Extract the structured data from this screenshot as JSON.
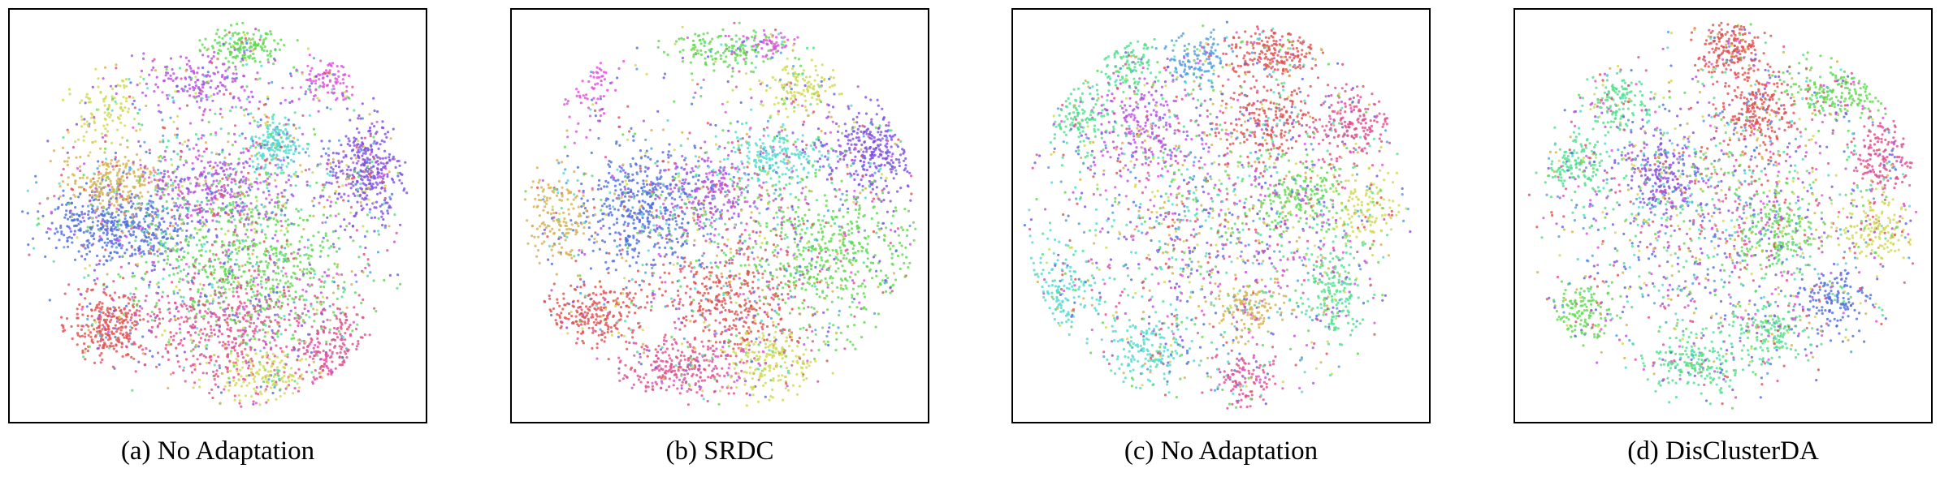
{
  "figure": {
    "panels": [
      {
        "caption": "(a) No Adaptation"
      },
      {
        "caption": "(b) SRDC"
      },
      {
        "caption": "(c) No Adaptation"
      },
      {
        "caption": "(d) DisClusterDA"
      }
    ]
  },
  "chart_data": [
    {
      "type": "scatter",
      "caption": "(a) No Adaptation",
      "axes_visible": false,
      "grid": false,
      "xlim": [
        0,
        1
      ],
      "ylim": [
        0,
        1
      ],
      "palette": [
        "#4f6fdd",
        "#e0504f",
        "#5fd94f",
        "#b84fe0",
        "#e04f8f",
        "#4fdcd0",
        "#cfd94f",
        "#7f4fe0",
        "#d6b04f",
        "#e04fdc",
        "#4fe08f",
        "#4f9fe0"
      ],
      "clusters": [
        {
          "cx": 0.25,
          "cy": 0.53,
          "sx": 0.1,
          "sy": 0.045,
          "color": 0,
          "n": 520
        },
        {
          "cx": 0.23,
          "cy": 0.41,
          "sx": 0.07,
          "sy": 0.04,
          "color": 8,
          "n": 260
        },
        {
          "cx": 0.22,
          "cy": 0.23,
          "sx": 0.05,
          "sy": 0.05,
          "color": 6,
          "n": 120
        },
        {
          "cx": 0.22,
          "cy": 0.78,
          "sx": 0.05,
          "sy": 0.045,
          "color": 1,
          "n": 300
        },
        {
          "cx": 0.57,
          "cy": 0.06,
          "sx": 0.05,
          "sy": 0.025,
          "color": 2,
          "n": 170
        },
        {
          "cx": 0.77,
          "cy": 0.15,
          "sx": 0.04,
          "sy": 0.03,
          "color": 9,
          "n": 110
        },
        {
          "cx": 0.46,
          "cy": 0.16,
          "sx": 0.08,
          "sy": 0.04,
          "color": 3,
          "n": 200
        },
        {
          "cx": 0.64,
          "cy": 0.32,
          "sx": 0.04,
          "sy": 0.035,
          "color": 5,
          "n": 200
        },
        {
          "cx": 0.88,
          "cy": 0.38,
          "sx": 0.05,
          "sy": 0.06,
          "color": 7,
          "n": 380
        },
        {
          "cx": 0.5,
          "cy": 0.42,
          "sx": 0.08,
          "sy": 0.05,
          "color": 3,
          "n": 280
        },
        {
          "cx": 0.58,
          "cy": 0.62,
          "sx": 0.13,
          "sy": 0.1,
          "color": 2,
          "n": 650
        },
        {
          "cx": 0.53,
          "cy": 0.8,
          "sx": 0.12,
          "sy": 0.07,
          "color": 4,
          "n": 480
        },
        {
          "cx": 0.8,
          "cy": 0.86,
          "sx": 0.05,
          "sy": 0.07,
          "color": 4,
          "n": 260
        },
        {
          "cx": 0.62,
          "cy": 0.92,
          "sx": 0.06,
          "sy": 0.035,
          "color": 6,
          "n": 170
        },
        {
          "cx": 0.55,
          "cy": 0.5,
          "sx": 0.22,
          "sy": 0.2,
          "color": "mix",
          "n": 900
        }
      ]
    },
    {
      "type": "scatter",
      "caption": "(b) SRDC",
      "axes_visible": false,
      "grid": false,
      "xlim": [
        0,
        1
      ],
      "ylim": [
        0,
        1
      ],
      "palette": [
        "#4f6fdd",
        "#e0504f",
        "#5fd94f",
        "#b84fe0",
        "#e04f8f",
        "#4fdcd0",
        "#cfd94f",
        "#7f4fe0",
        "#d6b04f",
        "#e04fdc",
        "#4fe08f",
        "#4f9fe0"
      ],
      "clusters": [
        {
          "cx": 0.32,
          "cy": 0.48,
          "sx": 0.08,
          "sy": 0.08,
          "color": 0,
          "n": 520
        },
        {
          "cx": 0.09,
          "cy": 0.5,
          "sx": 0.04,
          "sy": 0.07,
          "color": 8,
          "n": 190
        },
        {
          "cx": 0.17,
          "cy": 0.75,
          "sx": 0.07,
          "sy": 0.04,
          "color": 1,
          "n": 260
        },
        {
          "cx": 0.53,
          "cy": 0.07,
          "sx": 0.08,
          "sy": 0.025,
          "color": 2,
          "n": 170
        },
        {
          "cx": 0.63,
          "cy": 0.06,
          "sx": 0.03,
          "sy": 0.02,
          "color": 9,
          "n": 60
        },
        {
          "cx": 0.7,
          "cy": 0.17,
          "sx": 0.05,
          "sy": 0.03,
          "color": 6,
          "n": 140
        },
        {
          "cx": 0.17,
          "cy": 0.17,
          "sx": 0.03,
          "sy": 0.05,
          "color": 9,
          "n": 90
        },
        {
          "cx": 0.63,
          "cy": 0.35,
          "sx": 0.06,
          "sy": 0.035,
          "color": 5,
          "n": 210
        },
        {
          "cx": 0.89,
          "cy": 0.33,
          "sx": 0.06,
          "sy": 0.06,
          "color": 7,
          "n": 360
        },
        {
          "cx": 0.48,
          "cy": 0.44,
          "sx": 0.06,
          "sy": 0.04,
          "color": 3,
          "n": 190
        },
        {
          "cx": 0.78,
          "cy": 0.6,
          "sx": 0.12,
          "sy": 0.09,
          "color": 2,
          "n": 580
        },
        {
          "cx": 0.52,
          "cy": 0.72,
          "sx": 0.1,
          "sy": 0.07,
          "color": 1,
          "n": 400
        },
        {
          "cx": 0.4,
          "cy": 0.89,
          "sx": 0.08,
          "sy": 0.04,
          "color": 4,
          "n": 290
        },
        {
          "cx": 0.63,
          "cy": 0.88,
          "sx": 0.06,
          "sy": 0.05,
          "color": 6,
          "n": 210
        },
        {
          "cx": 0.55,
          "cy": 0.5,
          "sx": 0.22,
          "sy": 0.2,
          "color": "mix",
          "n": 700
        }
      ]
    },
    {
      "type": "scatter",
      "caption": "(c) No Adaptation",
      "axes_visible": false,
      "grid": false,
      "xlim": [
        0,
        1
      ],
      "ylim": [
        0,
        1
      ],
      "palette": [
        "#4f6fdd",
        "#e0504f",
        "#5fd94f",
        "#b84fe0",
        "#e04f8f",
        "#4fdcd0",
        "#cfd94f",
        "#7f4fe0",
        "#d6b04f",
        "#e04fdc",
        "#4fe08f",
        "#4f9fe0"
      ],
      "clusters": [
        {
          "cx": 0.64,
          "cy": 0.08,
          "sx": 0.06,
          "sy": 0.04,
          "color": 1,
          "n": 250
        },
        {
          "cx": 0.84,
          "cy": 0.26,
          "sx": 0.05,
          "sy": 0.05,
          "color": 4,
          "n": 200
        },
        {
          "cx": 0.62,
          "cy": 0.25,
          "sx": 0.06,
          "sy": 0.05,
          "color": 1,
          "n": 220
        },
        {
          "cx": 0.26,
          "cy": 0.11,
          "sx": 0.04,
          "sy": 0.04,
          "color": 10,
          "n": 140
        },
        {
          "cx": 0.44,
          "cy": 0.1,
          "sx": 0.04,
          "sy": 0.035,
          "color": 11,
          "n": 140
        },
        {
          "cx": 0.14,
          "cy": 0.25,
          "sx": 0.04,
          "sy": 0.05,
          "color": 10,
          "n": 160
        },
        {
          "cx": 0.3,
          "cy": 0.27,
          "sx": 0.06,
          "sy": 0.06,
          "color": 3,
          "n": 220
        },
        {
          "cx": 0.7,
          "cy": 0.45,
          "sx": 0.06,
          "sy": 0.05,
          "color": 2,
          "n": 210
        },
        {
          "cx": 0.87,
          "cy": 0.48,
          "sx": 0.04,
          "sy": 0.05,
          "color": 6,
          "n": 140
        },
        {
          "cx": 0.79,
          "cy": 0.7,
          "sx": 0.04,
          "sy": 0.07,
          "color": 10,
          "n": 190
        },
        {
          "cx": 0.09,
          "cy": 0.7,
          "sx": 0.05,
          "sy": 0.07,
          "color": 5,
          "n": 200
        },
        {
          "cx": 0.32,
          "cy": 0.85,
          "sx": 0.05,
          "sy": 0.04,
          "color": 5,
          "n": 170
        },
        {
          "cx": 0.57,
          "cy": 0.74,
          "sx": 0.05,
          "sy": 0.04,
          "color": 8,
          "n": 140
        },
        {
          "cx": 0.56,
          "cy": 0.92,
          "sx": 0.04,
          "sy": 0.035,
          "color": 4,
          "n": 120
        },
        {
          "cx": 0.47,
          "cy": 0.52,
          "sx": 0.22,
          "sy": 0.22,
          "color": "mix",
          "n": 1500
        }
      ]
    },
    {
      "type": "scatter",
      "caption": "(d) DisClusterDA",
      "axes_visible": false,
      "grid": false,
      "xlim": [
        0,
        1
      ],
      "ylim": [
        0,
        1
      ],
      "palette": [
        "#4f6fdd",
        "#e0504f",
        "#5fd94f",
        "#b84fe0",
        "#e04f8f",
        "#4fdcd0",
        "#cfd94f",
        "#7f4fe0",
        "#d6b04f",
        "#e04fdc",
        "#4fe08f",
        "#4f9fe0"
      ],
      "clusters": [
        {
          "cx": 0.52,
          "cy": 0.07,
          "sx": 0.04,
          "sy": 0.04,
          "color": 1,
          "n": 220
        },
        {
          "cx": 0.59,
          "cy": 0.23,
          "sx": 0.05,
          "sy": 0.05,
          "color": 1,
          "n": 230
        },
        {
          "cx": 0.79,
          "cy": 0.18,
          "sx": 0.06,
          "sy": 0.04,
          "color": 2,
          "n": 220
        },
        {
          "cx": 0.9,
          "cy": 0.35,
          "sx": 0.04,
          "sy": 0.06,
          "color": 4,
          "n": 200
        },
        {
          "cx": 0.89,
          "cy": 0.54,
          "sx": 0.05,
          "sy": 0.04,
          "color": 6,
          "n": 170
        },
        {
          "cx": 0.23,
          "cy": 0.2,
          "sx": 0.04,
          "sy": 0.04,
          "color": 10,
          "n": 150
        },
        {
          "cx": 0.13,
          "cy": 0.37,
          "sx": 0.04,
          "sy": 0.04,
          "color": 10,
          "n": 150
        },
        {
          "cx": 0.34,
          "cy": 0.4,
          "sx": 0.05,
          "sy": 0.06,
          "color": 7,
          "n": 220
        },
        {
          "cx": 0.78,
          "cy": 0.72,
          "sx": 0.05,
          "sy": 0.04,
          "color": 0,
          "n": 150
        },
        {
          "cx": 0.63,
          "cy": 0.8,
          "sx": 0.05,
          "sy": 0.04,
          "color": 10,
          "n": 160
        },
        {
          "cx": 0.42,
          "cy": 0.88,
          "sx": 0.06,
          "sy": 0.04,
          "color": 10,
          "n": 190
        },
        {
          "cx": 0.14,
          "cy": 0.75,
          "sx": 0.05,
          "sy": 0.05,
          "color": 2,
          "n": 160
        },
        {
          "cx": 0.64,
          "cy": 0.55,
          "sx": 0.05,
          "sy": 0.05,
          "color": 2,
          "n": 180
        },
        {
          "cx": 0.48,
          "cy": 0.52,
          "sx": 0.22,
          "sy": 0.22,
          "color": "mix",
          "n": 1500
        }
      ]
    }
  ]
}
